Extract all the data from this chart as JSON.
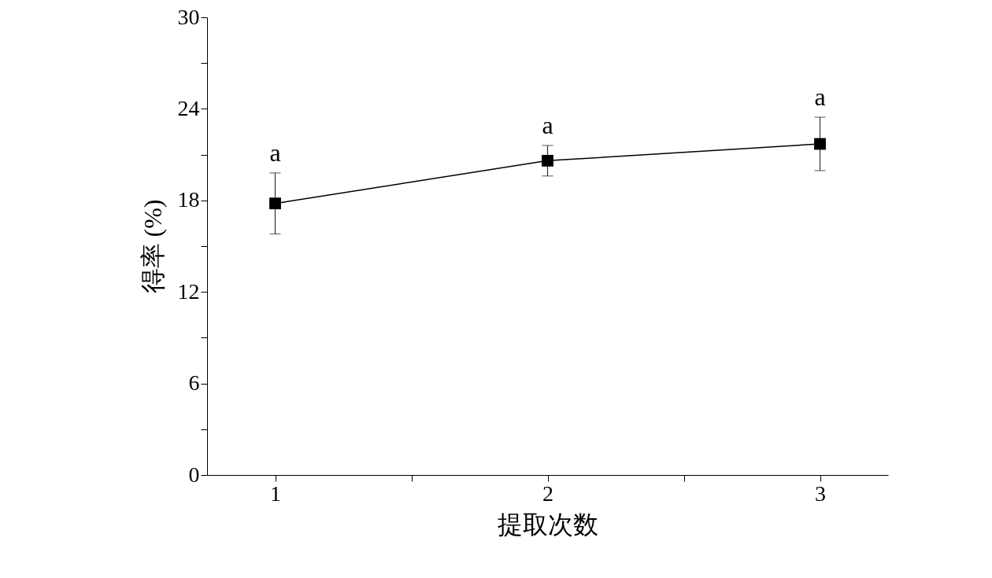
{
  "chart_data": {
    "type": "line",
    "xlabel": "提取次数",
    "ylabel": "得率 (%)",
    "x": [
      1,
      2,
      3
    ],
    "series": [
      {
        "color": "#000000",
        "values": [
          17.8,
          20.6,
          21.7
        ],
        "errors": [
          2.0,
          1.0,
          1.75
        ]
      }
    ],
    "marker": "square",
    "line_style": "solid",
    "grid": false,
    "xlim": [
      0.75,
      3.25
    ],
    "xticks": [
      1,
      {
        "value": 1.5,
        "label": null
      },
      2,
      {
        "value": 2.5,
        "label": null
      },
      3
    ],
    "ylim": [
      0,
      30
    ],
    "yticks": [
      0,
      {
        "value": 3,
        "label": null
      },
      6,
      {
        "value": 9,
        "label": null
      },
      12,
      {
        "value": 15,
        "label": null
      },
      18,
      {
        "value": 21,
        "label": null
      },
      24,
      {
        "value": 27,
        "label": null
      },
      30
    ],
    "annotations": [
      {
        "text": "a",
        "x": 1,
        "y": 19.8
      },
      {
        "text": "a",
        "x": 2,
        "y": 21.6
      },
      {
        "text": "a",
        "x": 3,
        "y": 23.45
      }
    ]
  }
}
